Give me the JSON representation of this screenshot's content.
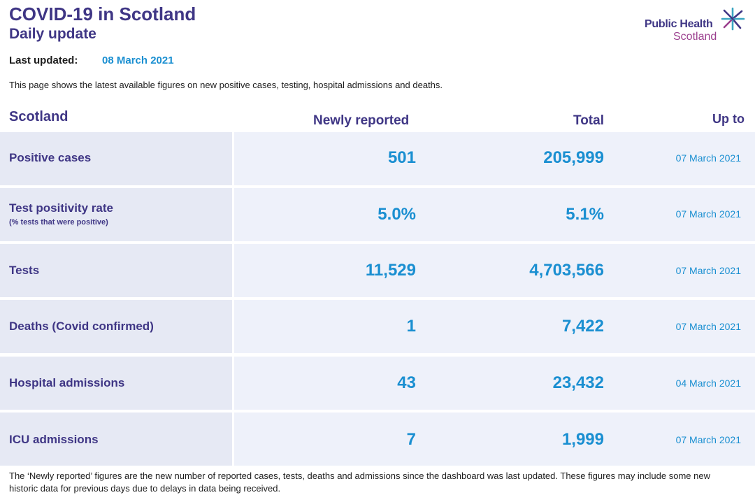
{
  "header": {
    "title": "COVID-19 in Scotland",
    "subtitle": "Daily update",
    "logo_line1": "Public Health",
    "logo_line2": "Scotland"
  },
  "updated": {
    "label": "Last updated:",
    "value": "08 March 2021"
  },
  "intro": "This page shows the latest available figures on new positive cases, testing, hospital admissions and deaths.",
  "table": {
    "headers": {
      "region": "Scotland",
      "new": "Newly reported",
      "total": "Total",
      "upto": "Up to"
    },
    "rows": [
      {
        "label": "Positive cases",
        "sublabel": "",
        "new": "501",
        "total": "205,999",
        "date": "07 March 2021"
      },
      {
        "label": "Test positivity rate",
        "sublabel": "(% tests that were positive)",
        "new": "5.0%",
        "total": "5.1%",
        "date": "07 March 2021"
      },
      {
        "label": "Tests",
        "sublabel": "",
        "new": "11,529",
        "total": "4,703,566",
        "date": "07 March 2021"
      },
      {
        "label": "Deaths (Covid confirmed)",
        "sublabel": "",
        "new": "1",
        "total": "7,422",
        "date": "07 March 2021"
      },
      {
        "label": "Hospital admissions",
        "sublabel": "",
        "new": "43",
        "total": "23,432",
        "date": "04 March 2021"
      },
      {
        "label": "ICU admissions",
        "sublabel": "",
        "new": "7",
        "total": "1,999",
        "date": "07 March 2021"
      }
    ]
  },
  "footnote": "The ‘Newly reported’ figures are the new number of reported cases, tests, deaths and admissions since the dashboard was last updated. These figures may include some new historic data for previous days due to delays in data being received.",
  "colors": {
    "brand": "#3f3685",
    "accent": "#1a8fd1",
    "label_bg": "#e6e9f4",
    "value_bg": "#eef1fa"
  }
}
